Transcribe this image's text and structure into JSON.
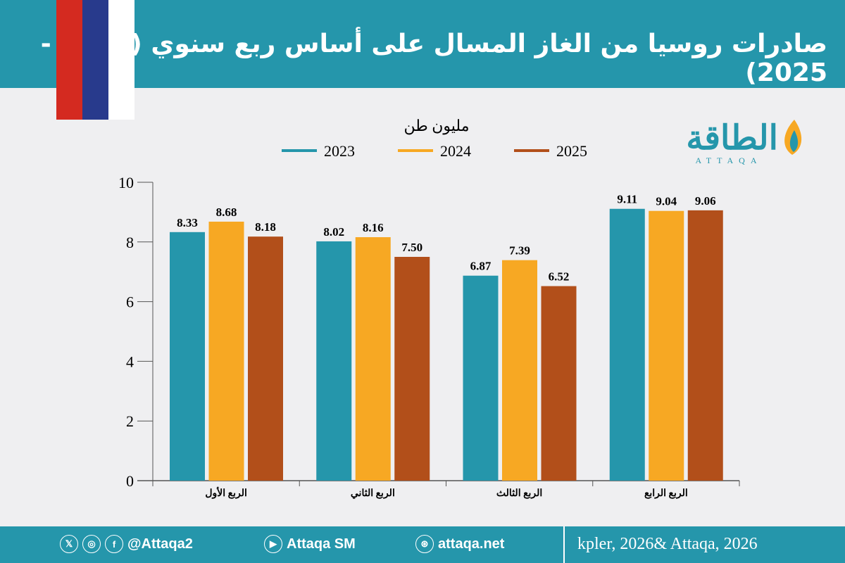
{
  "header": {
    "title": "صادرات روسيا من الغاز المسال على أساس ربع سنوي (2023 - 2025)"
  },
  "logo": {
    "text": "الطاقة",
    "subtext": "ATTAQA"
  },
  "colors": {
    "flag": [
      "#d42a20",
      "#283a8c",
      "#ffffff"
    ],
    "header": "#2596ab"
  },
  "chart_data": {
    "type": "bar",
    "ylabel": "مليون طن",
    "categories": [
      "الربع الأول",
      "الربع الثاني",
      "الربع الثالث",
      "الربع الرابع"
    ],
    "series": [
      {
        "name": "2023",
        "color": "#2596ab",
        "values": [
          8.33,
          8.02,
          6.87,
          9.11
        ]
      },
      {
        "name": "2024",
        "color": "#f7a823",
        "values": [
          8.68,
          8.16,
          7.39,
          9.04
        ]
      },
      {
        "name": "2025",
        "color": "#b24f1a",
        "values": [
          8.18,
          7.5,
          6.52,
          9.06
        ]
      }
    ],
    "ylim": [
      0,
      10
    ],
    "yticks": [
      0,
      2,
      4,
      6,
      8,
      10
    ],
    "legend": "top",
    "grid": false
  },
  "footer": {
    "handle": "@Attaqa2",
    "youtube": "Attaqa SM",
    "site": "attaqa.net",
    "source": "kpler, 2026& Attaqa, 2026",
    "icons": [
      "x-icon",
      "instagram-icon",
      "facebook-icon",
      "youtube-icon",
      "globe-icon"
    ]
  }
}
